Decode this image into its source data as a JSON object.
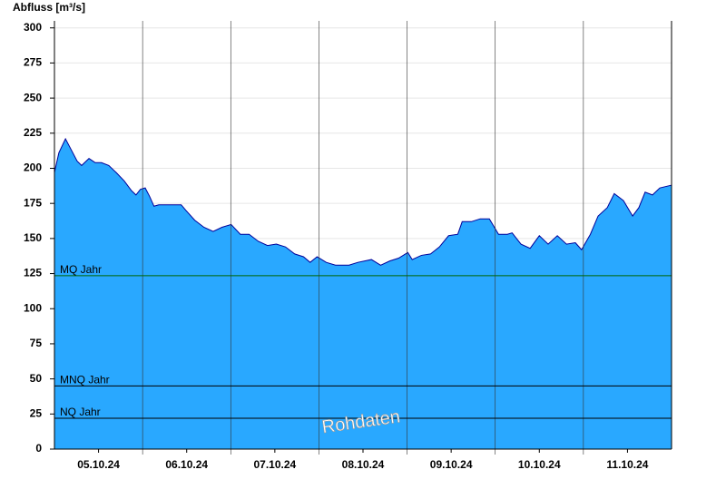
{
  "chart_data": {
    "type": "area",
    "y_label": "Abfluss [m³/s]",
    "watermark": "Rohdaten",
    "x": [
      0,
      1.2,
      3,
      4.4,
      6.2,
      7.4,
      9.4,
      11.1,
      12.8,
      14.8,
      16.8,
      19,
      21,
      22.2,
      23.4,
      24.7,
      25.9,
      27.1,
      28.4,
      32.1,
      34.5,
      35.8,
      38.2,
      40.7,
      43.2,
      45.6,
      48.1,
      50.6,
      53,
      55.5,
      58,
      60.4,
      62.9,
      65.4,
      67.8,
      69.6,
      71.5,
      74,
      76.5,
      80.2,
      82.6,
      86.3,
      88.8,
      91.3,
      93.7,
      96.2,
      97.4,
      99.9,
      102.4,
      104.8,
      107.3,
      109.8,
      111,
      113.5,
      115.9,
      118.4,
      120.9,
      123.3,
      124.6,
      127,
      129.5,
      132,
      134.4,
      136.9,
      139.4,
      141.8,
      143.5,
      145.9,
      148,
      150.5,
      152.4,
      154.9,
      157.4,
      159.1,
      160.8,
      162.8,
      164.8,
      168
    ],
    "values": [
      197,
      211,
      221,
      214,
      205,
      202,
      207,
      204,
      204,
      202,
      197,
      191,
      184,
      181,
      185,
      186,
      180,
      173,
      174,
      174,
      174,
      170,
      163,
      158,
      155,
      158,
      160,
      153,
      153,
      148,
      145,
      146,
      144,
      139,
      137,
      133,
      137,
      133,
      131,
      131,
      133,
      135,
      131,
      134,
      136,
      140,
      135,
      138,
      139,
      144,
      152,
      153,
      162,
      162,
      164,
      164,
      153,
      153,
      154,
      146,
      143,
      152,
      146,
      152,
      146,
      147,
      142,
      153,
      166,
      172,
      182,
      177,
      166,
      172,
      183,
      181,
      186,
      188
    ],
    "fill": "#29a8ff",
    "color": "#000099",
    "xlim": [
      0,
      168
    ],
    "xticks": [
      {
        "value": 12,
        "label": "05.10.24"
      },
      {
        "value": 36,
        "label": "06.10.24"
      },
      {
        "value": 60,
        "label": "07.10.24"
      },
      {
        "value": 84,
        "label": "08.10.24"
      },
      {
        "value": 108,
        "label": "09.10.24"
      },
      {
        "value": 132,
        "label": "10.10.24"
      },
      {
        "value": 156,
        "label": "11.10.24"
      }
    ],
    "ylim": [
      0,
      305
    ],
    "yticks": [
      0,
      25,
      50,
      75,
      100,
      125,
      150,
      175,
      200,
      225,
      250,
      275,
      300
    ],
    "grid": true,
    "reference_lines": [
      {
        "label": "MQ Jahr",
        "value": 123.5,
        "color": "#006600"
      },
      {
        "label": "MNQ Jahr",
        "value": 45,
        "color": "#000000"
      },
      {
        "label": "NQ Jahr",
        "value": 22,
        "color": "#000000"
      }
    ]
  }
}
